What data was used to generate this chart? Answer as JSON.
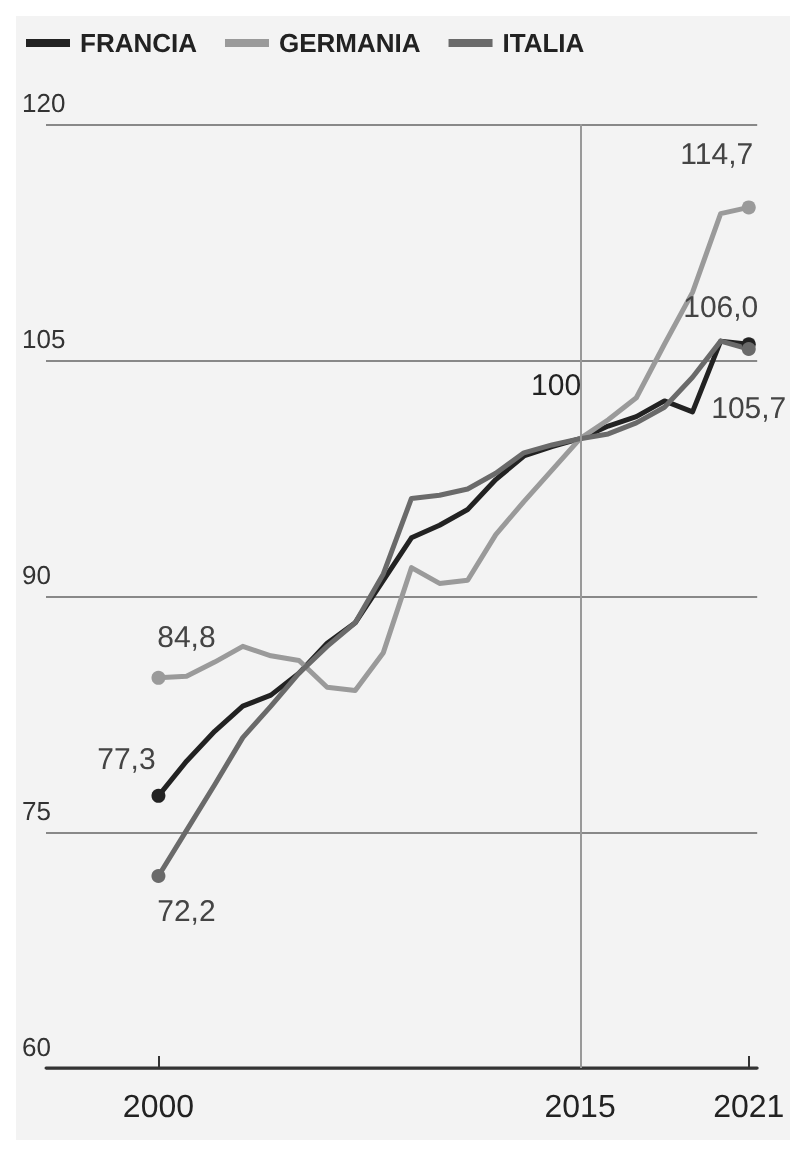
{
  "chart_data": {
    "type": "line",
    "x": [
      2000,
      2001,
      2002,
      2003,
      2004,
      2005,
      2006,
      2007,
      2008,
      2009,
      2010,
      2011,
      2012,
      2013,
      2014,
      2015,
      2016,
      2017,
      2018,
      2019,
      2020,
      2021
    ],
    "series": [
      {
        "name": "FRANCIA",
        "color": "#222222",
        "values": [
          77.3,
          79.5,
          81.4,
          83.0,
          83.7,
          85.1,
          87.0,
          88.3,
          91.0,
          93.7,
          94.5,
          95.5,
          97.4,
          98.9,
          99.5,
          100,
          100.8,
          101.4,
          102.4,
          101.7,
          106.2,
          106.0
        ],
        "value_labels": [
          "77,3",
          null,
          null,
          null,
          null,
          null,
          null,
          null,
          null,
          null,
          null,
          null,
          null,
          null,
          null,
          null,
          null,
          null,
          null,
          null,
          null,
          "106,0"
        ]
      },
      {
        "name": "GERMANIA",
        "color": "#9a9a9a",
        "values": [
          84.8,
          84.9,
          85.8,
          86.8,
          86.2,
          85.9,
          84.2,
          84.0,
          86.4,
          91.8,
          90.8,
          91.0,
          93.9,
          96.0,
          98.0,
          100,
          101.2,
          102.6,
          106.0,
          109.3,
          114.3,
          114.7
        ],
        "value_labels": [
          "84,8",
          null,
          null,
          null,
          null,
          null,
          null,
          null,
          null,
          null,
          null,
          null,
          null,
          null,
          null,
          null,
          null,
          null,
          null,
          null,
          null,
          "114,7"
        ]
      },
      {
        "name": "ITALIA",
        "color": "#6a6a6a",
        "values": [
          72.2,
          75.1,
          78.0,
          81.0,
          83.0,
          85.1,
          86.8,
          88.3,
          91.4,
          96.2,
          96.4,
          96.8,
          97.8,
          99.1,
          99.6,
          100,
          100.3,
          101.0,
          102.0,
          103.9,
          106.2,
          105.7
        ],
        "value_labels": [
          "72,2",
          null,
          null,
          null,
          null,
          null,
          null,
          null,
          null,
          null,
          null,
          null,
          null,
          null,
          null,
          null,
          null,
          null,
          null,
          null,
          null,
          "105,7"
        ]
      }
    ],
    "xlim": [
      1996,
      2021.3
    ],
    "xticks": [
      2000,
      2015,
      2021
    ],
    "ylim": [
      60,
      120
    ],
    "yticks": [
      60,
      75,
      90,
      105,
      120
    ],
    "grid": "y",
    "legend": "top left",
    "line_style": "solid",
    "ref_lines": [
      {
        "axis": "x",
        "value": 2015,
        "color": "#999999"
      }
    ],
    "annotations": [
      {
        "text": "100",
        "x": 2015,
        "y": 100
      }
    ]
  }
}
